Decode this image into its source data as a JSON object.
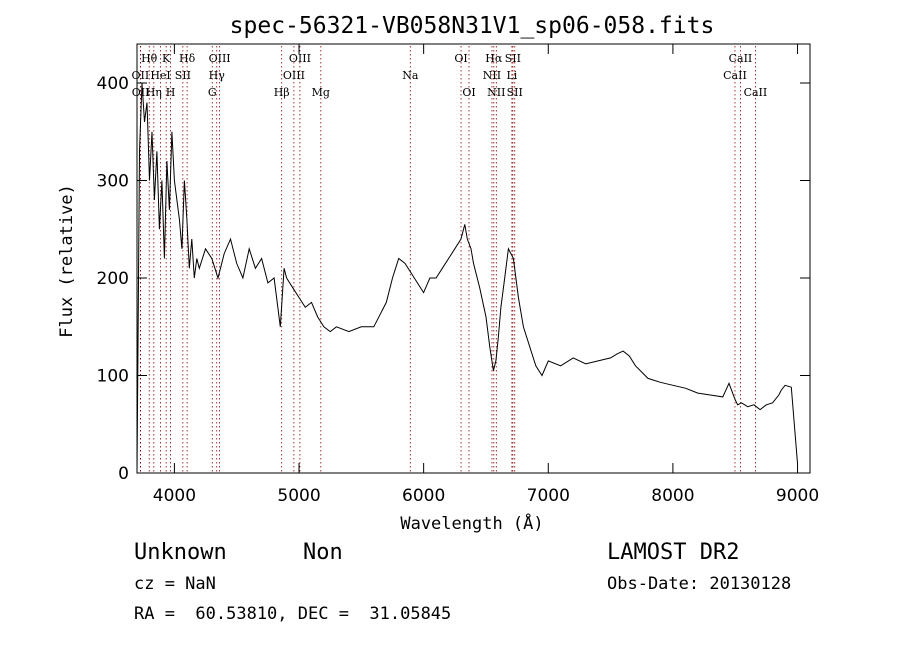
{
  "chart_data": {
    "type": "line",
    "title": "spec-56321-VB058N31V1_sp06-058.fits",
    "xlabel": "Wavelength (Å)",
    "ylabel": "Flux (relative)",
    "xlim": [
      3700,
      9100
    ],
    "ylim": [
      0,
      440
    ],
    "xticks": [
      4000,
      5000,
      6000,
      7000,
      8000,
      9000
    ],
    "yticks": [
      0,
      100,
      200,
      300,
      400
    ],
    "grid": false,
    "line_color": "#000000",
    "marker_color": "#8b0000",
    "spectrum": {
      "x": [
        3700,
        3720,
        3740,
        3760,
        3780,
        3800,
        3820,
        3840,
        3860,
        3880,
        3900,
        3920,
        3940,
        3960,
        3980,
        4000,
        4020,
        4040,
        4060,
        4080,
        4100,
        4120,
        4140,
        4160,
        4180,
        4200,
        4250,
        4300,
        4350,
        4400,
        4450,
        4500,
        4550,
        4600,
        4650,
        4700,
        4750,
        4800,
        4850,
        4880,
        4900,
        4950,
        5000,
        5050,
        5100,
        5150,
        5200,
        5250,
        5300,
        5400,
        5500,
        5600,
        5700,
        5750,
        5800,
        5850,
        5900,
        5950,
        6000,
        6050,
        6100,
        6150,
        6200,
        6250,
        6300,
        6330,
        6350,
        6380,
        6400,
        6450,
        6500,
        6530,
        6560,
        6580,
        6600,
        6620,
        6650,
        6680,
        6700,
        6720,
        6740,
        6760,
        6800,
        6850,
        6900,
        6950,
        7000,
        7100,
        7200,
        7300,
        7400,
        7500,
        7550,
        7600,
        7650,
        7700,
        7800,
        7900,
        8000,
        8100,
        8200,
        8300,
        8400,
        8450,
        8500,
        8520,
        8550,
        8600,
        8650,
        8700,
        8750,
        8800,
        8850,
        8870,
        8900,
        8950,
        9000
      ],
      "y": [
        0,
        330,
        400,
        360,
        380,
        300,
        350,
        280,
        330,
        250,
        300,
        220,
        320,
        270,
        350,
        300,
        280,
        260,
        230,
        300,
        260,
        210,
        240,
        200,
        220,
        210,
        230,
        220,
        200,
        225,
        240,
        215,
        200,
        230,
        210,
        220,
        195,
        200,
        150,
        210,
        200,
        190,
        180,
        170,
        175,
        160,
        150,
        145,
        150,
        145,
        150,
        150,
        175,
        200,
        220,
        215,
        205,
        195,
        185,
        200,
        200,
        210,
        220,
        230,
        240,
        255,
        240,
        230,
        215,
        190,
        160,
        130,
        105,
        115,
        140,
        170,
        200,
        230,
        225,
        220,
        200,
        180,
        150,
        130,
        110,
        100,
        115,
        110,
        118,
        112,
        115,
        118,
        122,
        125,
        120,
        110,
        97,
        93,
        90,
        87,
        82,
        80,
        78,
        92,
        75,
        70,
        72,
        68,
        70,
        65,
        70,
        72,
        80,
        85,
        90,
        88,
        10
      ]
    },
    "line_markers": [
      {
        "label": "Hθ",
        "x": 3798,
        "row": 0
      },
      {
        "label": "OII",
        "x": 3727,
        "row": 1
      },
      {
        "label": "OII",
        "x": 3729,
        "row": 2
      },
      {
        "label": "Hη",
        "x": 3835,
        "row": 2
      },
      {
        "label": "K",
        "x": 3934,
        "row": 0
      },
      {
        "label": "HeI",
        "x": 3889,
        "row": 1
      },
      {
        "label": "H",
        "x": 3969,
        "row": 2
      },
      {
        "label": "Hδ",
        "x": 4102,
        "row": 0
      },
      {
        "label": "SII",
        "x": 4068,
        "row": 1
      },
      {
        "label": "OIII",
        "x": 4363,
        "row": 0
      },
      {
        "label": "Hγ",
        "x": 4340,
        "row": 1
      },
      {
        "label": "G",
        "x": 4304,
        "row": 2
      },
      {
        "label": "Hβ",
        "x": 4861,
        "row": 2
      },
      {
        "label": "OIII",
        "x": 5007,
        "row": 0
      },
      {
        "label": "OIII",
        "x": 4959,
        "row": 1
      },
      {
        "label": "Mg",
        "x": 5175,
        "row": 2
      },
      {
        "label": "Na",
        "x": 5893,
        "row": 1
      },
      {
        "label": "OI",
        "x": 6300,
        "row": 0
      },
      {
        "label": "OI",
        "x": 6364,
        "row": 2
      },
      {
        "label": "Hα",
        "x": 6563,
        "row": 0
      },
      {
        "label": "NII",
        "x": 6548,
        "row": 1
      },
      {
        "label": "NII",
        "x": 6583,
        "row": 2
      },
      {
        "label": "SII",
        "x": 6716,
        "row": 0
      },
      {
        "label": "Li",
        "x": 6708,
        "row": 1
      },
      {
        "label": "SII",
        "x": 6731,
        "row": 2
      },
      {
        "label": "CaII",
        "x": 8542,
        "row": 0
      },
      {
        "label": "CaII",
        "x": 8498,
        "row": 1
      },
      {
        "label": "CaII",
        "x": 8662,
        "row": 2
      }
    ]
  },
  "info": {
    "class": "Unknown",
    "subclass": "Non",
    "survey": "LAMOST DR2",
    "cz": "cz = NaN",
    "obs_date": "Obs-Date: 20130128",
    "coords": "RA =  60.53810, DEC =  31.05845"
  }
}
